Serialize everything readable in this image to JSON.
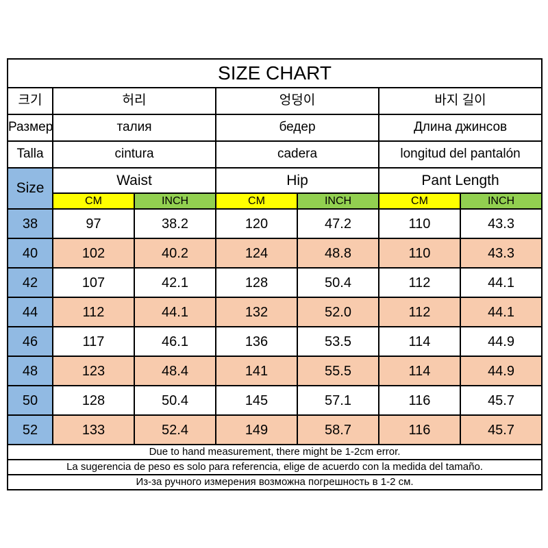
{
  "title": "SIZE CHART",
  "colors": {
    "size_column_blue": "#91BAE3",
    "alt_row_peach": "#F8CBAD",
    "cm_header_yellow": "#FFFF00",
    "inch_header_green": "#92D050",
    "border": "#000000",
    "text": "#000000",
    "background": "#ffffff"
  },
  "language_headers": [
    {
      "size": "크기",
      "waist": "허리",
      "hip": "엉덩이",
      "pant_length": "바지 길이"
    },
    {
      "size": "Размер",
      "waist": "талия",
      "hip": "бедер",
      "pant_length": "Длина джинсов"
    },
    {
      "size": "Talla",
      "waist": "cintura",
      "hip": "cadera",
      "pant_length": "longitud del pantalón"
    }
  ],
  "column_headers": {
    "size": "Size",
    "waist": "Waist",
    "hip": "Hip",
    "pant_length": "Pant Length"
  },
  "unit_headers": {
    "cm": "CM",
    "inch": "INCH"
  },
  "rows": [
    {
      "size": "38",
      "waist_cm": "97",
      "waist_inch": "38.2",
      "hip_cm": "120",
      "hip_inch": "47.2",
      "pant_cm": "110",
      "pant_inch": "43.3"
    },
    {
      "size": "40",
      "waist_cm": "102",
      "waist_inch": "40.2",
      "hip_cm": "124",
      "hip_inch": "48.8",
      "pant_cm": "110",
      "pant_inch": "43.3"
    },
    {
      "size": "42",
      "waist_cm": "107",
      "waist_inch": "42.1",
      "hip_cm": "128",
      "hip_inch": "50.4",
      "pant_cm": "112",
      "pant_inch": "44.1"
    },
    {
      "size": "44",
      "waist_cm": "112",
      "waist_inch": "44.1",
      "hip_cm": "132",
      "hip_inch": "52.0",
      "pant_cm": "112",
      "pant_inch": "44.1"
    },
    {
      "size": "46",
      "waist_cm": "117",
      "waist_inch": "46.1",
      "hip_cm": "136",
      "hip_inch": "53.5",
      "pant_cm": "114",
      "pant_inch": "44.9"
    },
    {
      "size": "48",
      "waist_cm": "123",
      "waist_inch": "48.4",
      "hip_cm": "141",
      "hip_inch": "55.5",
      "pant_cm": "114",
      "pant_inch": "44.9"
    },
    {
      "size": "50",
      "waist_cm": "128",
      "waist_inch": "50.4",
      "hip_cm": "145",
      "hip_inch": "57.1",
      "pant_cm": "116",
      "pant_inch": "45.7"
    },
    {
      "size": "52",
      "waist_cm": "133",
      "waist_inch": "52.4",
      "hip_cm": "149",
      "hip_inch": "58.7",
      "pant_cm": "116",
      "pant_inch": "45.7"
    }
  ],
  "notes": [
    "Due to hand measurement, there might be 1-2cm error.",
    "La sugerencia de peso es solo para referencia, elige de acuerdo con la medida del tamaño.",
    "Из-за ручного измерения возможна погрешность в 1-2 см."
  ]
}
